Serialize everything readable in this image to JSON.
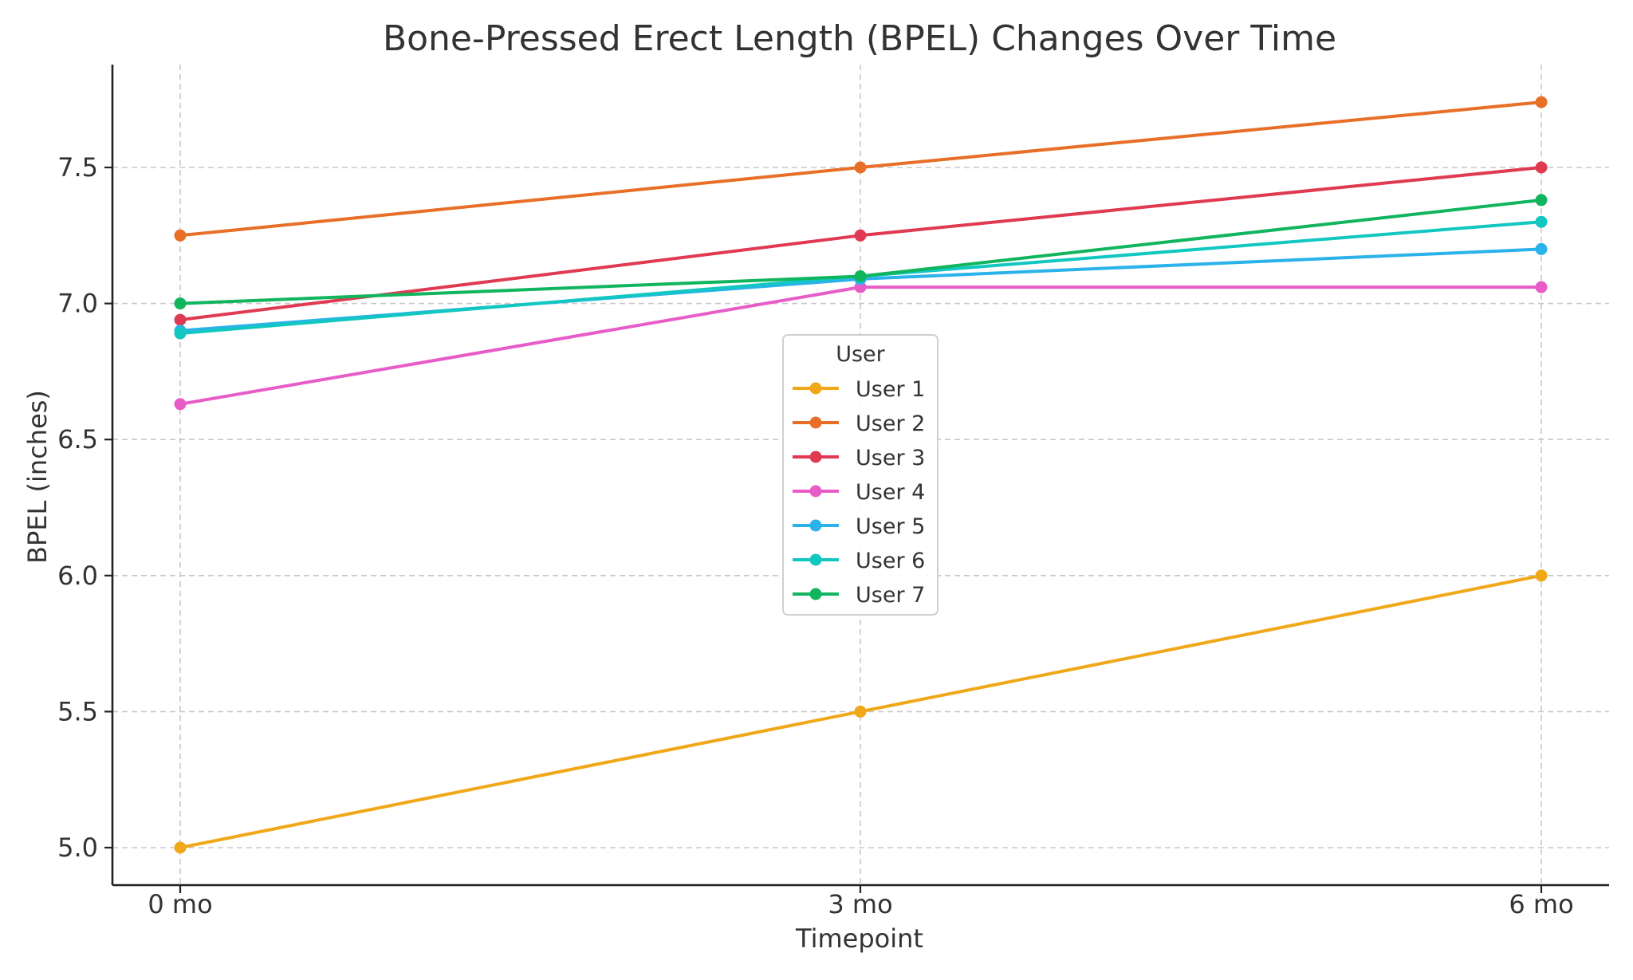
{
  "chart_data": {
    "type": "line",
    "title": "Bone-Pressed Erect Length (BPEL) Changes Over Time",
    "xlabel": "Timepoint",
    "ylabel": "BPEL (inches)",
    "categories": [
      "0 mo",
      "3 mo",
      "6 mo"
    ],
    "yticks": [
      "5.0",
      "5.5",
      "6.0",
      "6.5",
      "7.0",
      "7.5"
    ],
    "ylim": [
      4.87,
      7.88
    ],
    "grid": true,
    "legend": {
      "title": "User",
      "placement": "center"
    },
    "series": [
      {
        "name": "User 1",
        "color": "#f0a818",
        "values": [
          5.0,
          5.5,
          6.0
        ]
      },
      {
        "name": "User 2",
        "color": "#e86f28",
        "values": [
          7.25,
          7.5,
          7.74
        ]
      },
      {
        "name": "User 3",
        "color": "#e03a52",
        "values": [
          6.94,
          7.25,
          7.5
        ]
      },
      {
        "name": "User 4",
        "color": "#e85cc8",
        "values": [
          6.63,
          7.06,
          7.06
        ]
      },
      {
        "name": "User 5",
        "color": "#2bb2ea",
        "values": [
          6.9,
          7.09,
          7.2
        ]
      },
      {
        "name": "User 6",
        "color": "#12c7c0",
        "values": [
          6.89,
          7.1,
          7.3
        ]
      },
      {
        "name": "User 7",
        "color": "#10b55e",
        "values": [
          7.0,
          7.1,
          7.38
        ]
      }
    ]
  }
}
